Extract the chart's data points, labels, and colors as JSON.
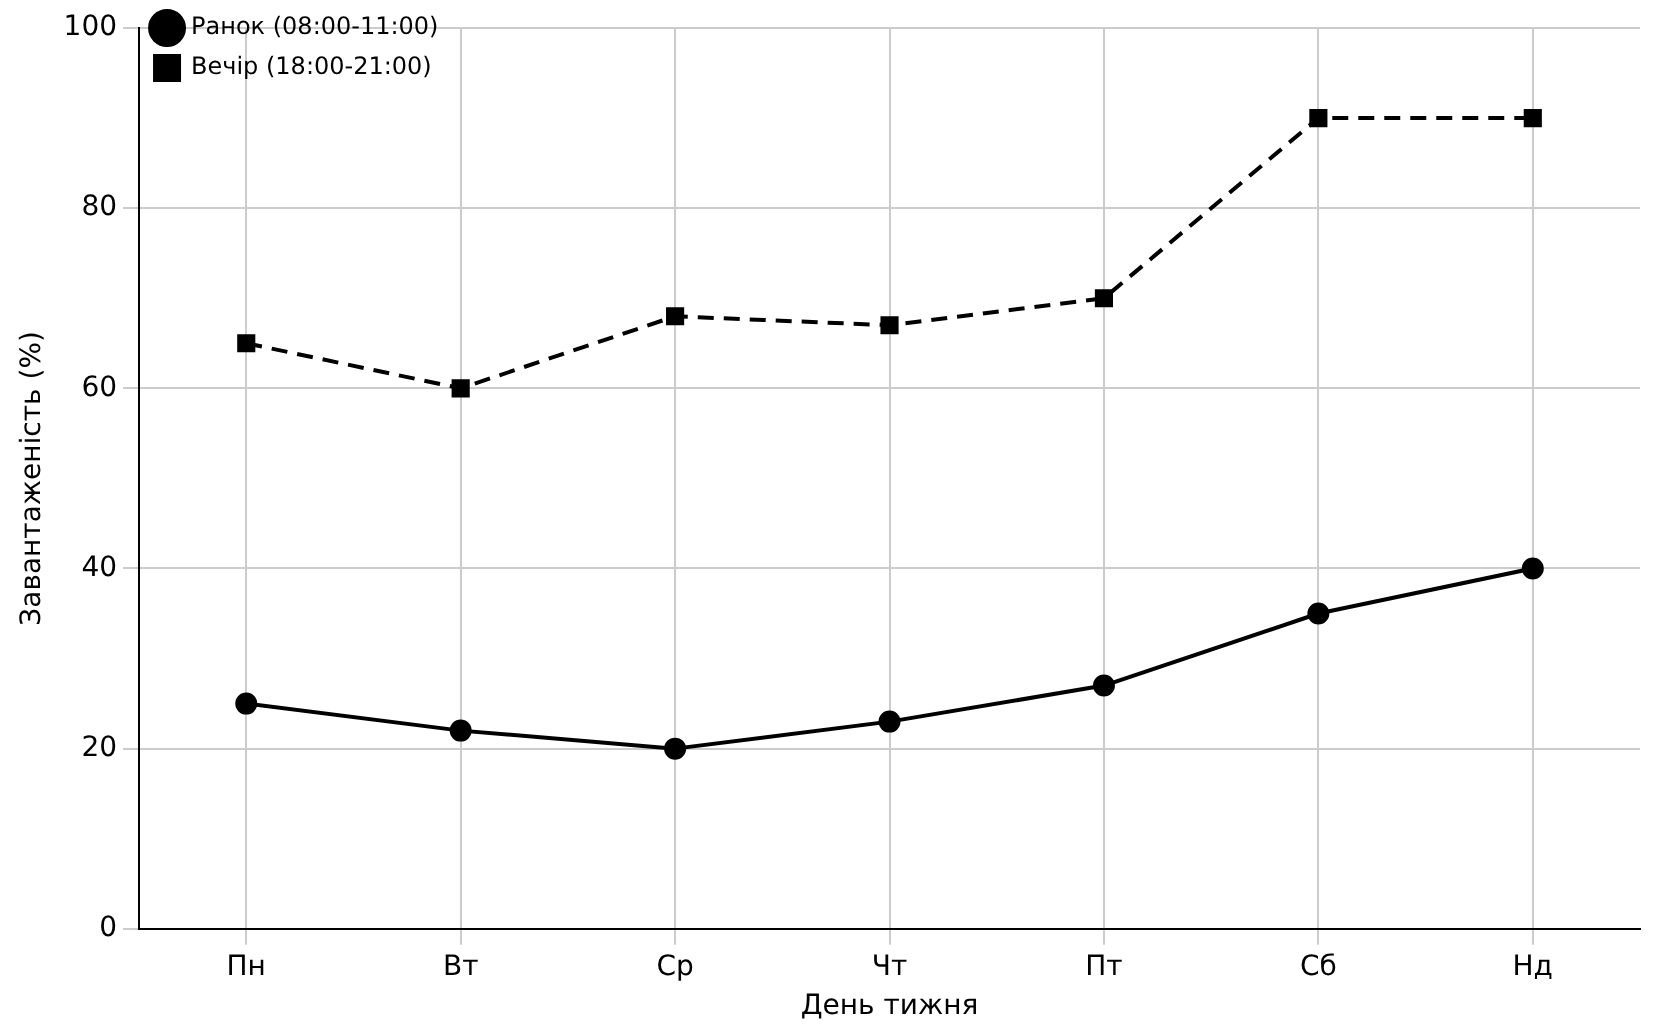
{
  "chart_data": {
    "type": "line",
    "xlabel": "День тижня",
    "ylabel": "Завантаженість (%)",
    "categories": [
      "Пн",
      "Вт",
      "Ср",
      "Чт",
      "Пт",
      "Сб",
      "Нд"
    ],
    "series": [
      {
        "name": "Ранок (08:00-11:00)",
        "color": "#000000",
        "values": [
          25,
          22,
          20,
          23,
          27,
          35,
          40
        ],
        "marker": "circle",
        "line_style": "solid"
      },
      {
        "name": "Вечір (18:00-21:00)",
        "color": "#000000",
        "values": [
          65,
          60,
          68,
          67,
          70,
          90,
          90
        ],
        "marker": "square",
        "line_style": "dashed"
      }
    ],
    "ylim": [
      0,
      100
    ],
    "yticks": [
      0,
      20,
      40,
      60,
      80,
      100
    ],
    "grid": true,
    "legend": "top left"
  }
}
